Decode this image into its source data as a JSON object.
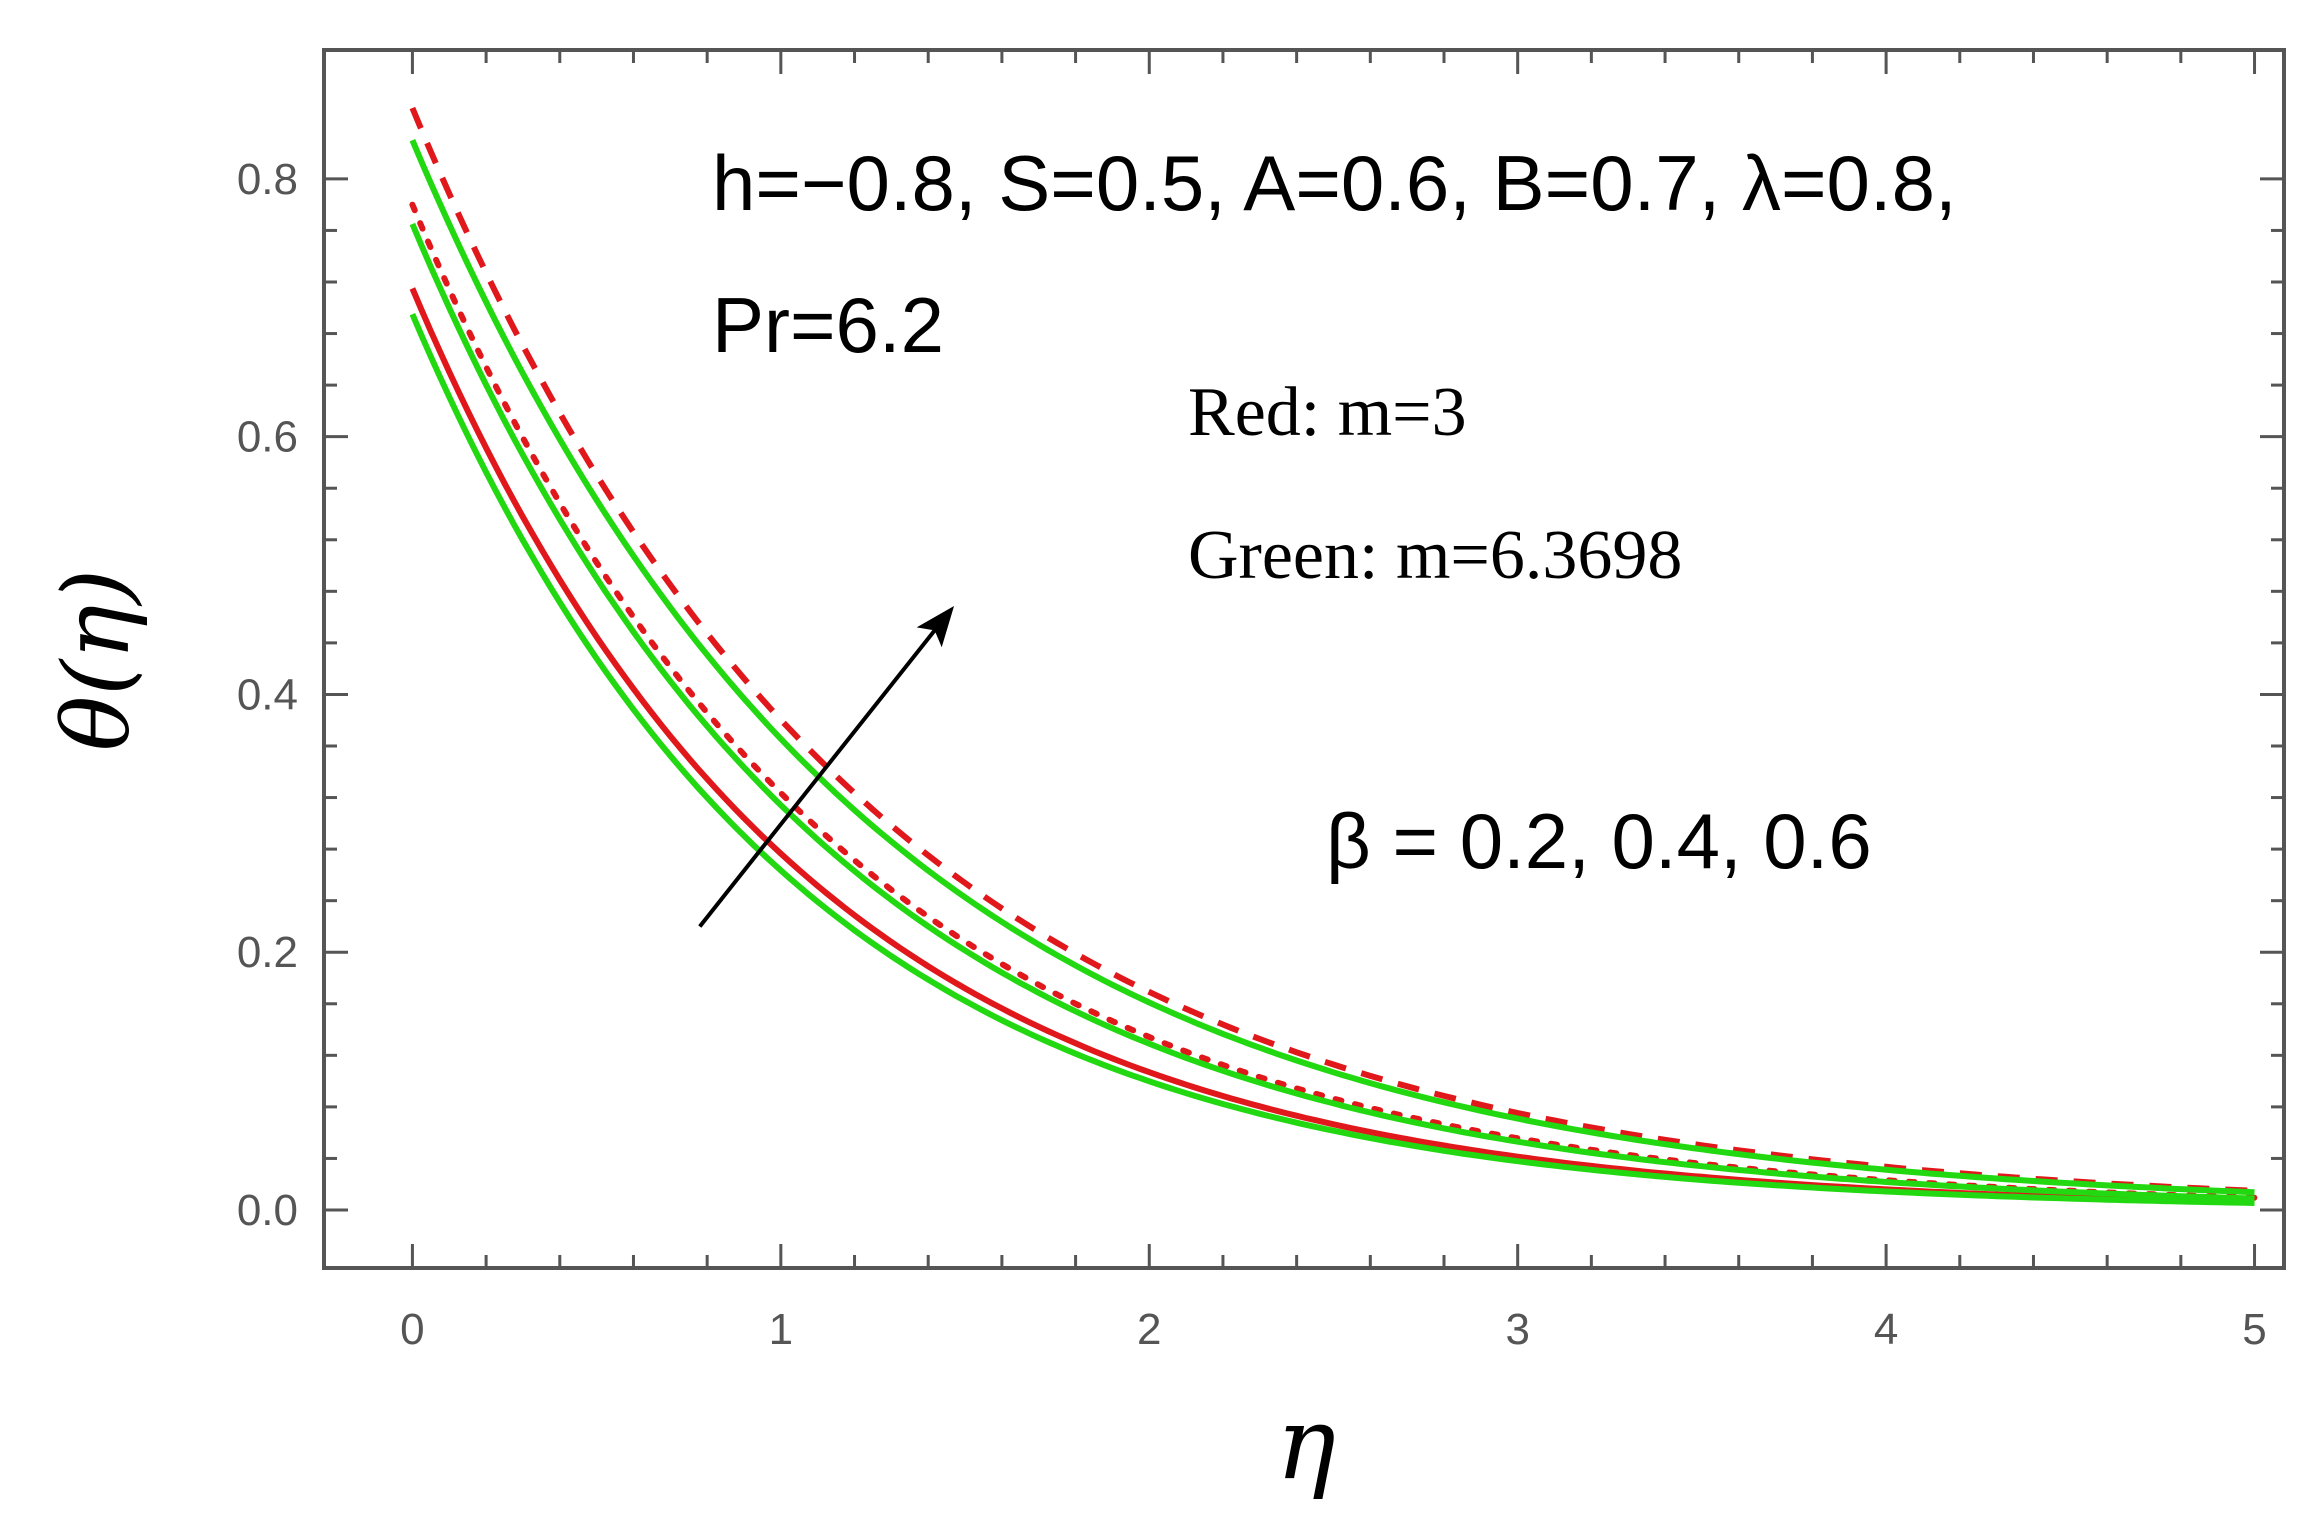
{
  "chart_data": {
    "type": "line",
    "xlabel": "η",
    "ylabel": "θ(η)",
    "xlim": [
      -0.24,
      5.08
    ],
    "ylim": [
      -0.045,
      0.9
    ],
    "x_ticks": [
      0,
      1,
      2,
      3,
      4,
      5
    ],
    "x_tick_labels": [
      "0",
      "1",
      "2",
      "3",
      "4",
      "5"
    ],
    "y_ticks": [
      0.0,
      0.2,
      0.4,
      0.6,
      0.8
    ],
    "y_tick_labels": [
      "0.0",
      "0.2",
      "0.4",
      "0.6",
      "0.8"
    ],
    "colors": {
      "red": "#e0171b",
      "green": "#22d811",
      "axis": "#555555",
      "arrow": "#000000"
    },
    "series": [
      {
        "name": "Red, m=3, β=0.2",
        "color": "red",
        "style": "solid",
        "theta0": 0.715,
        "decay": 0.95,
        "x": [
          0,
          0.5,
          1,
          1.5,
          2,
          2.5,
          3,
          3.5,
          4,
          4.5,
          5
        ],
        "y": [
          0.715,
          0.498,
          0.326,
          0.209,
          0.132,
          0.084,
          0.053,
          0.033,
          0.021,
          0.013,
          0.006
        ]
      },
      {
        "name": "Red, m=3, β=0.4",
        "color": "red",
        "style": "dotted",
        "theta0": 0.78,
        "decay": 0.88,
        "x": [
          0,
          0.5,
          1,
          1.5,
          2,
          2.5,
          3,
          3.5,
          4,
          4.5,
          5
        ],
        "y": [
          0.78,
          0.561,
          0.378,
          0.249,
          0.162,
          0.104,
          0.066,
          0.042,
          0.026,
          0.016,
          0.008
        ]
      },
      {
        "name": "Red, m=3, β=0.6",
        "color": "red",
        "style": "dashed",
        "theta0": 0.855,
        "decay": 0.81,
        "x": [
          0,
          0.5,
          1,
          1.5,
          2,
          2.5,
          3,
          3.5,
          4,
          4.5,
          5
        ],
        "y": [
          0.855,
          0.628,
          0.435,
          0.293,
          0.195,
          0.127,
          0.082,
          0.052,
          0.033,
          0.02,
          0.009
        ]
      },
      {
        "name": "Green, m=6.3698, β=0.2",
        "color": "green",
        "style": "solid",
        "theta0": 0.695,
        "decay": 0.97,
        "x": [
          0,
          0.5,
          1,
          1.5,
          2,
          2.5,
          3,
          3.5,
          4,
          4.5,
          5
        ],
        "y": [
          0.695,
          0.48,
          0.312,
          0.199,
          0.125,
          0.079,
          0.05,
          0.031,
          0.019,
          0.012,
          0.006
        ]
      },
      {
        "name": "Green, m=6.3698, β=0.4",
        "color": "green",
        "style": "solid",
        "theta0": 0.765,
        "decay": 0.89,
        "x": [
          0,
          0.5,
          1,
          1.5,
          2,
          2.5,
          3,
          3.5,
          4,
          4.5,
          5
        ],
        "y": [
          0.765,
          0.548,
          0.37,
          0.243,
          0.158,
          0.101,
          0.064,
          0.041,
          0.026,
          0.016,
          0.007
        ]
      },
      {
        "name": "Green, m=6.3698, β=0.6",
        "color": "green",
        "style": "solid",
        "theta0": 0.83,
        "decay": 0.82,
        "x": [
          0,
          0.5,
          1,
          1.5,
          2,
          2.5,
          3,
          3.5,
          4,
          4.5,
          5
        ],
        "y": [
          0.83,
          0.608,
          0.42,
          0.283,
          0.188,
          0.122,
          0.079,
          0.05,
          0.032,
          0.019,
          0.008
        ]
      }
    ],
    "arrow": {
      "from": [
        0.78,
        0.22
      ],
      "to": [
        1.46,
        0.465
      ],
      "meaning": "increasing β"
    },
    "annotations": {
      "params_line1": "h=−0.8, S=0.5, A=0.6, B=0.7, λ=0.8,",
      "params_line2": "Pr=6.2",
      "red_legend": "Red: m=3",
      "green_legend": "Green: m=6.3698",
      "beta_label": "β = 0.2,  0.4,  0.6"
    }
  }
}
